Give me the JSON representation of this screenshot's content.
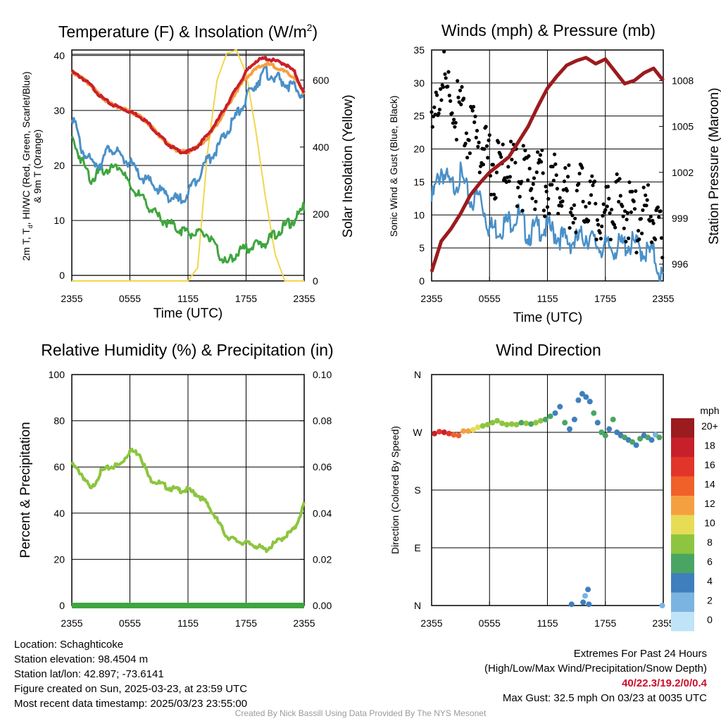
{
  "panels": {
    "temp": {
      "title": "Temperature (F) & Insolation (W/m",
      "title_sup": "2",
      "title_end": ")",
      "ylabel_left_line1": "2m T, T",
      "ylabel_left_sub": "d",
      "ylabel_left_line1_end": ", HI/WC (Red, Green, Scarlet/Blue)",
      "ylabel_left_line2": "& 9m T (Orange)",
      "ylabel_right": "Solar Insolation (Yellow)",
      "xlabel": "Time (UTC)"
    },
    "wind": {
      "title": "Winds (mph) & Pressure (mb)",
      "ylabel_left": "Sonic Wind & Gust (Blue, Black)",
      "ylabel_right": "Station Pressure (Maroon)",
      "xlabel": "Time (UTC)"
    },
    "rh": {
      "title": "Relative Humidity (%) & Precipitation (in)",
      "ylabel_left": "Percent & Precipitation"
    },
    "dir": {
      "title": "Wind Direction",
      "ylabel_left": "Direction (Colored By Speed)",
      "colorbar_title": "mph",
      "colorbar_labels": [
        "20+",
        "18",
        "16",
        "14",
        "12",
        "10",
        "8",
        "6",
        "4",
        "2",
        "0"
      ],
      "colorbar_colors": [
        "#9b1b1e",
        "#c8202a",
        "#e2352a",
        "#f0602b",
        "#f5a040",
        "#e6dc55",
        "#8dc540",
        "#4aa563",
        "#3f7fbd",
        "#7bb4e0",
        "#bfe3f7"
      ]
    }
  },
  "info": {
    "location": "Location: Schaghticoke",
    "elevation": "Station elevation: 98.4504 m",
    "latlon": "Station lat/lon: 42.897; -73.6141",
    "created": "Figure created on Sun, 2025-03-23, at 23:59 UTC",
    "recent": "Most recent data timestamp: 2025/03/23 23:55:00",
    "extremes_title": "Extremes For Past 24 Hours",
    "extremes_sub": "(High/Low/Max Wind/Precipitation/Snow Depth)",
    "extremes_values": "40/22.3/19.2/0/0.4",
    "max_gust": "Max Gust: 32.5 mph On 03/23 at 0035 UTC",
    "credit": "Created By Nick Bassill Using Data Provided By The NYS Mesonet"
  },
  "chart_data": [
    {
      "type": "line",
      "title": "Temperature (F) & Insolation (W/m2)",
      "xlabel": "Time (UTC)",
      "ylabel": "2m T, Td, HI/WC (Red, Green, Scarlet/Blue) & 9m T (Orange)",
      "ylabel_right": "Solar Insolation (Yellow)",
      "x_ticks": [
        "2355",
        "0555",
        "1155",
        "1755",
        "2355"
      ],
      "ylim": [
        -1,
        41
      ],
      "y_ticks": [
        0,
        10,
        20,
        30,
        40
      ],
      "ylim_right": [
        0,
        690
      ],
      "y_ticks_right": [
        0,
        200,
        400,
        600
      ],
      "x_hours": [
        0,
        1,
        2,
        3,
        4,
        5,
        6,
        7,
        8,
        9,
        10,
        11,
        12,
        13,
        14,
        15,
        16,
        17,
        18,
        19,
        20,
        21,
        22,
        23,
        24
      ],
      "series": [
        {
          "color": "#c8202a",
          "axis": "left",
          "values": [
            37,
            36,
            34.5,
            32.5,
            31.2,
            30.5,
            29.8,
            29,
            27.5,
            25.5,
            23.8,
            22.6,
            22.4,
            23.5,
            25.5,
            28,
            31,
            34,
            37,
            39,
            39.5,
            39,
            38.5,
            37,
            33
          ]
        },
        {
          "color": "#f5a040",
          "axis": "left",
          "values": [
            37,
            36,
            34.5,
            32.5,
            31.2,
            30.5,
            29.8,
            29,
            27.5,
            25.5,
            23.8,
            22.6,
            22.4,
            23.5,
            25,
            27.5,
            30.5,
            33.5,
            36,
            37.5,
            38.5,
            38,
            37,
            36,
            33
          ]
        },
        {
          "color": "#4a90c8",
          "axis": "left",
          "values": [
            29.5,
            23,
            20.5,
            20.5,
            23.5,
            21.5,
            20.5,
            18,
            17,
            15.5,
            14.5,
            13.5,
            15,
            18,
            21,
            23,
            26,
            29,
            32,
            35,
            37,
            36,
            35,
            34,
            33
          ]
        },
        {
          "color": "#3fa53f",
          "axis": "left",
          "values": [
            25,
            21,
            17.5,
            19,
            19.5,
            20,
            16,
            14.5,
            12.5,
            10.5,
            9.5,
            8.5,
            7.8,
            7.5,
            7.5,
            4.5,
            2,
            4,
            5,
            5.5,
            6,
            7.5,
            9,
            10,
            12.5
          ]
        },
        {
          "color": "#f2d64b",
          "axis": "right",
          "values": [
            0,
            0,
            0,
            0,
            0,
            0,
            0,
            0,
            0,
            0,
            0,
            0,
            0,
            40,
            380,
            600,
            680,
            690,
            620,
            450,
            250,
            80,
            0,
            0,
            0
          ]
        }
      ]
    },
    {
      "type": "line",
      "title": "Winds (mph) & Pressure (mb)",
      "xlabel": "Time (UTC)",
      "ylabel": "Sonic Wind & Gust (Blue, Black)",
      "ylabel_right": "Station Pressure (Maroon)",
      "x_ticks": [
        "2355",
        "0555",
        "1155",
        "1755",
        "2355"
      ],
      "ylim": [
        0,
        35
      ],
      "y_ticks": [
        0,
        5,
        10,
        15,
        20,
        25,
        30,
        35
      ],
      "ylim_right": [
        994.9,
        1010
      ],
      "y_ticks_right": [
        996,
        999,
        1002,
        1005,
        1008
      ],
      "x_hours": [
        0,
        1,
        2,
        3,
        4,
        5,
        6,
        7,
        8,
        9,
        10,
        11,
        12,
        13,
        14,
        15,
        16,
        17,
        18,
        19,
        20,
        21,
        22,
        23,
        24
      ],
      "series": [
        {
          "color": "#4a90c8",
          "axis": "left",
          "values": [
            12,
            17,
            14,
            16,
            12,
            13,
            8,
            8,
            9,
            10,
            7,
            8,
            8,
            7,
            6,
            6,
            7,
            5.5,
            5,
            5,
            5.5,
            5.5,
            4.5,
            4,
            0
          ]
        },
        {
          "color": "#000000",
          "axis": "left",
          "values": [
            21,
            31,
            27,
            25,
            22,
            21,
            18,
            17,
            18,
            16,
            15,
            16,
            14,
            15,
            13,
            12,
            14,
            11,
            10,
            12,
            11,
            9,
            10,
            10,
            4
          ]
        },
        {
          "color": "#9b1b1e",
          "axis": "right",
          "values": [
            995.5,
            997.5,
            998.3,
            999.3,
            1000.5,
            1001.3,
            1002,
            1002.5,
            1003,
            1004,
            1005,
            1006.3,
            1007.5,
            1008.3,
            1009,
            1009.3,
            1009.5,
            1009.1,
            1009.4,
            1008.6,
            1007.8,
            1008,
            1008.5,
            1008.8,
            1008
          ]
        }
      ]
    },
    {
      "type": "line",
      "title": "Relative Humidity (%) & Precipitation (in)",
      "ylabel": "Percent & Precipitation",
      "x_ticks": [
        "2355",
        "0555",
        "1155",
        "1755",
        "2355"
      ],
      "ylim": [
        0,
        100
      ],
      "y_ticks": [
        0,
        20,
        40,
        60,
        80,
        100
      ],
      "ylim_right": [
        0,
        0.1
      ],
      "y_ticks_right": [
        "0.00",
        "0.02",
        "0.04",
        "0.06",
        "0.08",
        "0.10"
      ],
      "x_hours": [
        0,
        1,
        2,
        3,
        4,
        5,
        6,
        7,
        8,
        9,
        10,
        11,
        12,
        13,
        14,
        15,
        16,
        17,
        18,
        19,
        20,
        21,
        22,
        23,
        24
      ],
      "series": [
        {
          "color": "#8dc540",
          "axis": "left",
          "values": [
            61,
            57,
            50,
            58,
            60,
            61,
            67,
            66,
            55,
            53,
            51,
            50,
            50,
            48,
            44,
            37,
            30,
            28,
            27,
            26,
            24,
            27,
            30,
            33,
            44
          ]
        },
        {
          "color": "#3fa53f",
          "axis": "right",
          "values": [
            0,
            0,
            0,
            0,
            0,
            0,
            0,
            0,
            0,
            0,
            0,
            0,
            0,
            0,
            0,
            0,
            0,
            0,
            0,
            0,
            0,
            0,
            0,
            0,
            0
          ]
        }
      ]
    },
    {
      "type": "scatter",
      "title": "Wind Direction",
      "ylabel": "Direction (Colored By Speed)",
      "x_ticks": [
        "2355",
        "0555",
        "1155",
        "1755",
        "2355"
      ],
      "y_ticks": [
        "N",
        "E",
        "S",
        "W",
        "N"
      ],
      "ylim": [
        0,
        360
      ],
      "legend": "right",
      "points_hours": [
        0.3,
        0.8,
        1.3,
        1.8,
        2.3,
        2.8,
        3.3,
        3.8,
        4.3,
        4.8,
        5.3,
        5.8,
        6.3,
        6.8,
        7.3,
        7.8,
        8.3,
        8.8,
        9.3,
        9.8,
        10.3,
        10.8,
        11.3,
        11.8,
        12.3,
        12.8,
        13.3,
        13.8,
        14.3,
        14.8,
        15.2,
        15.6,
        16.0,
        16.4,
        16.8,
        17.2,
        17.6,
        18.0,
        18.4,
        18.8,
        19.2,
        19.6,
        20.0,
        20.4,
        20.8,
        21.2,
        21.6,
        22.0,
        22.4,
        22.8,
        23.2,
        23.6,
        14.5,
        15.7,
        15.9,
        16.2,
        16.3,
        23.9
      ],
      "points_deg": [
        268,
        271,
        270,
        268,
        266,
        265,
        272,
        272,
        274,
        278,
        280,
        282,
        285,
        288,
        284,
        282,
        283,
        282,
        285,
        284,
        283,
        285,
        288,
        290,
        295,
        300,
        310,
        285,
        275,
        290,
        320,
        330,
        325,
        318,
        300,
        285,
        270,
        265,
        275,
        290,
        270,
        265,
        262,
        258,
        255,
        250,
        260,
        265,
        262,
        258,
        266,
        262,
        2,
        5,
        15,
        25,
        2,
        0
      ],
      "points_speed": [
        17,
        16,
        18,
        15,
        14,
        14,
        12,
        11,
        10,
        9,
        8,
        7,
        8,
        7,
        8,
        8,
        7,
        8,
        6,
        7,
        5,
        7,
        8,
        6,
        5,
        4,
        4,
        5,
        4,
        3,
        4,
        3,
        4,
        3,
        5,
        4,
        6,
        5,
        4,
        6,
        3,
        4,
        5,
        3,
        6,
        4,
        5,
        3,
        6,
        4,
        2,
        5,
        3,
        4,
        2,
        3,
        4,
        1
      ]
    }
  ]
}
